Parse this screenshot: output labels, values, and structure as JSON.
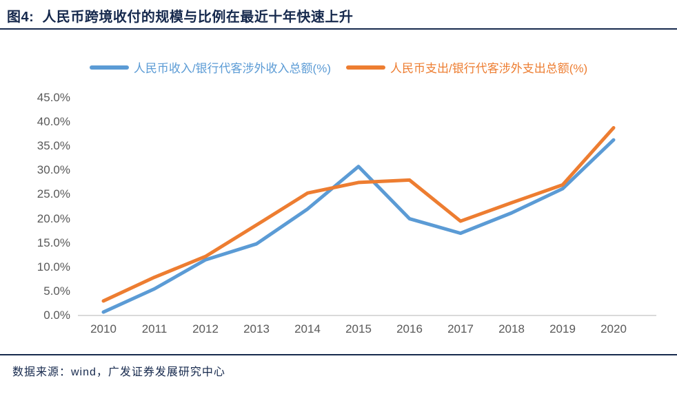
{
  "header": {
    "title": "图4:  人民币跨境收付的规模与比例在最近十年快速上升"
  },
  "footer": {
    "source": "数据来源：wind，广发证券发展研究中心"
  },
  "colors": {
    "series_income": "#5B9BD5",
    "series_expense": "#ED7D31",
    "title_text": "#16294d",
    "rule": "#16294d",
    "axis_text": "#595959",
    "axis_line": "#D9D9D9"
  },
  "chart_data": {
    "type": "line",
    "title": "人民币跨境收付的规模与比例在最近十年快速上升",
    "x": [
      2010,
      2011,
      2012,
      2013,
      2014,
      2015,
      2016,
      2017,
      2018,
      2019,
      2020
    ],
    "series": [
      {
        "name": "人民币收入/银行代客涉外收入总额(%)",
        "color_key": "series_income",
        "values": [
          0.7,
          5.5,
          11.5,
          14.8,
          22.0,
          30.8,
          20.0,
          17.0,
          21.2,
          26.2,
          36.3
        ]
      },
      {
        "name": "人民币支出/银行代客涉外支出总额(%)",
        "color_key": "series_expense",
        "values": [
          3.0,
          7.9,
          12.2,
          18.7,
          25.3,
          27.5,
          28.0,
          19.5,
          23.3,
          27.0,
          38.8
        ]
      }
    ],
    "xlabel": "",
    "ylabel": "",
    "ylim": [
      0,
      45
    ],
    "y_tick_step": 5,
    "y_tick_format": "0.0%",
    "grid": false,
    "legend_position": "top"
  }
}
